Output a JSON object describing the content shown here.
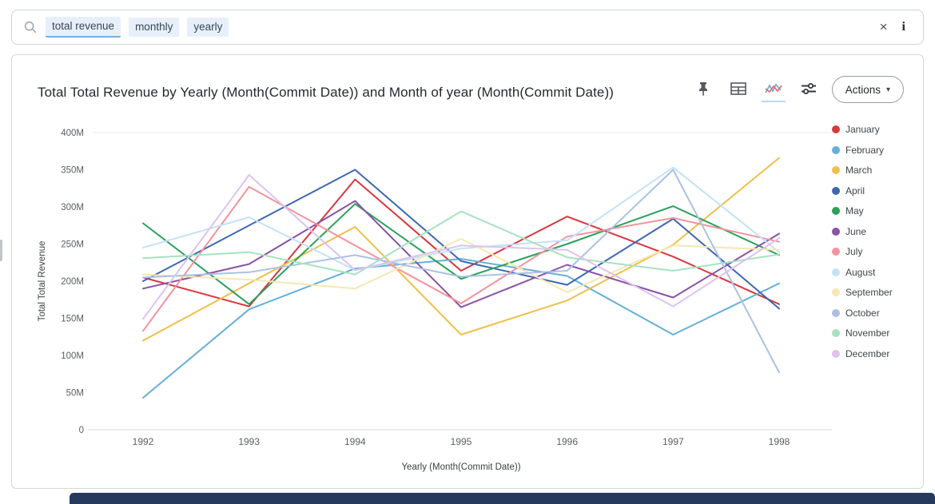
{
  "search": {
    "tokens": [
      {
        "label": "total revenue",
        "active": true
      },
      {
        "label": "monthly",
        "active": false
      },
      {
        "label": "yearly",
        "active": false
      }
    ],
    "clear_icon": "×",
    "info_icon": "i"
  },
  "toolbar": {
    "icons": [
      "pin-icon",
      "table-icon",
      "line-chart-icon",
      "settings-sliders-icon"
    ],
    "actions_label": "Actions",
    "caret_icon": "▾"
  },
  "chart_card": {
    "title": "Total Total Revenue by Yearly (Month(Commit Date)) and Month of year (Month(Commit Date))"
  },
  "chart_data": {
    "type": "line",
    "title": "Total Total Revenue by Yearly (Month(Commit Date)) and Month of year (Month(Commit Date))",
    "xlabel": "Yearly (Month(Commit Date))",
    "ylabel": "Total Total Revenue",
    "x": [
      "1992",
      "1993",
      "1994",
      "1995",
      "1996",
      "1997",
      "1998"
    ],
    "y_ticks": [
      "0",
      "50M",
      "100M",
      "150M",
      "200M",
      "250M",
      "300M",
      "350M",
      "400M"
    ],
    "ylim_millions": [
      0,
      400
    ],
    "values_unit": "M (millions)",
    "legend_position": "right",
    "grid": "off",
    "series": [
      {
        "name": "January",
        "color": "#d9373e",
        "values": [
          205,
          166,
          337,
          214,
          287,
          233,
          169
        ]
      },
      {
        "name": "February",
        "color": "#64b0d9",
        "values": [
          43,
          162,
          217,
          230,
          207,
          128,
          197
        ]
      },
      {
        "name": "March",
        "color": "#eec04b",
        "values": [
          120,
          197,
          273,
          128,
          174,
          249,
          366
        ]
      },
      {
        "name": "April",
        "color": "#3d68b0",
        "values": [
          200,
          275,
          350,
          227,
          195,
          284,
          163
        ]
      },
      {
        "name": "May",
        "color": "#2aa05a",
        "values": [
          278,
          169,
          304,
          203,
          250,
          301,
          235
        ]
      },
      {
        "name": "June",
        "color": "#8a52a8",
        "values": [
          190,
          223,
          308,
          165,
          222,
          178,
          264
        ]
      },
      {
        "name": "July",
        "color": "#f2939e",
        "values": [
          133,
          327,
          248,
          170,
          260,
          285,
          253
        ]
      },
      {
        "name": "August",
        "color": "#c3e3f6",
        "values": [
          245,
          286,
          215,
          244,
          255,
          353,
          239
        ]
      },
      {
        "name": "September",
        "color": "#f8e7b2",
        "values": [
          209,
          202,
          190,
          257,
          185,
          248,
          242
        ]
      },
      {
        "name": "October",
        "color": "#abc1e3",
        "values": [
          205,
          212,
          235,
          206,
          214,
          350,
          77
        ]
      },
      {
        "name": "November",
        "color": "#a6e2c0",
        "values": [
          231,
          239,
          209,
          294,
          232,
          214,
          236
        ]
      },
      {
        "name": "December",
        "color": "#dcc4ee",
        "values": [
          149,
          343,
          215,
          248,
          242,
          166,
          258
        ]
      }
    ]
  }
}
